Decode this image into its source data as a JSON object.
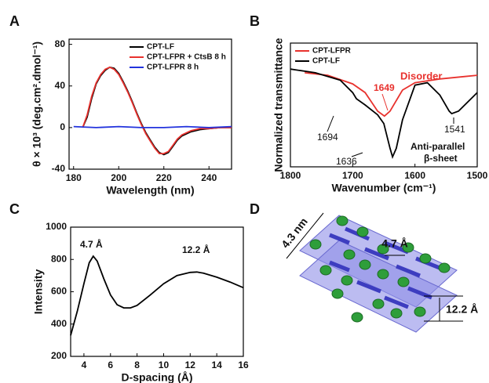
{
  "panels": [
    "A",
    "B",
    "C",
    "D"
  ],
  "chart_data": [
    {
      "type": "line",
      "xlabel": "Wavelength (nm)",
      "ylabel": "θ × 10³ (deg.cm².dmol⁻¹)",
      "xlim": [
        178,
        250
      ],
      "xticks": [
        180,
        200,
        220,
        240
      ],
      "ylim": [
        -40,
        85
      ],
      "yticks": [
        -40,
        0,
        40,
        80
      ],
      "legend": "upper right",
      "dashed_zero": true,
      "series": [
        {
          "name": "CPT-LF",
          "color": "#000000",
          "x": [
            184,
            186,
            188,
            190,
            192,
            194,
            196,
            198,
            200,
            202,
            204,
            206,
            208,
            210,
            212,
            214,
            216,
            218,
            220,
            222,
            224,
            226,
            228,
            232,
            236,
            240,
            245,
            250
          ],
          "values": [
            0,
            10,
            28,
            42,
            50,
            55,
            58,
            57,
            52,
            44,
            35,
            25,
            14,
            4,
            -5,
            -12,
            -19,
            -24,
            -26,
            -24,
            -18,
            -12,
            -8,
            -4,
            -2,
            -1,
            0,
            0
          ]
        },
        {
          "name": "CPT-LFPR + CtsB 8 h",
          "color": "#e8322e",
          "x": [
            184,
            186,
            188,
            190,
            192,
            194,
            196,
            198,
            200,
            202,
            204,
            206,
            208,
            210,
            212,
            214,
            216,
            218,
            220,
            222,
            224,
            226,
            228,
            232,
            236,
            240,
            245,
            250
          ],
          "values": [
            0,
            12,
            30,
            43,
            51,
            56,
            58,
            56,
            51,
            43,
            34,
            24,
            13,
            3,
            -6,
            -13,
            -20,
            -25,
            -25,
            -23,
            -17,
            -11,
            -7,
            -3,
            -1,
            -1,
            0,
            0
          ]
        },
        {
          "name": "CPT-LFPR 8 h",
          "color": "#2233dd",
          "x": [
            180,
            190,
            200,
            210,
            220,
            230,
            240,
            250
          ],
          "values": [
            1,
            0,
            1,
            0,
            0,
            1,
            0,
            1
          ]
        }
      ]
    },
    {
      "type": "line",
      "xlabel": "Wavenumber (cm⁻¹)",
      "ylabel": "Normalized transmittance",
      "xlim": [
        1800,
        1500
      ],
      "xticks": [
        1800,
        1700,
        1600,
        1500
      ],
      "ylim": [
        0,
        100
      ],
      "legend": "upper left",
      "annotations": [
        "1694",
        "1636",
        "1541",
        "1649",
        "Disorder",
        "Anti-parallel",
        "β-sheet"
      ],
      "series": [
        {
          "name": "CPT-LFPR",
          "color": "#e8322e",
          "x": [
            1777,
            1740,
            1700,
            1680,
            1660,
            1649,
            1640,
            1620,
            1600,
            1560,
            1520,
            1500
          ],
          "values": [
            76,
            74,
            67,
            60,
            45,
            41,
            45,
            62,
            68,
            71,
            73,
            74
          ]
        },
        {
          "name": "CPT-LF",
          "color": "#000000",
          "x": [
            1800,
            1760,
            1720,
            1700,
            1694,
            1680,
            1660,
            1650,
            1640,
            1636,
            1630,
            1620,
            1600,
            1580,
            1560,
            1545,
            1541,
            1530,
            1510,
            1500
          ],
          "values": [
            79,
            76,
            70,
            60,
            55,
            50,
            42,
            35,
            15,
            8,
            15,
            38,
            66,
            68,
            58,
            45,
            43,
            45,
            55,
            60
          ]
        }
      ]
    },
    {
      "type": "line",
      "xlabel": "D-spacing (Å)",
      "ylabel": "Intensity",
      "xlim": [
        3,
        16
      ],
      "xticks": [
        4,
        6,
        8,
        10,
        12,
        14,
        16
      ],
      "ylim": [
        200,
        1000
      ],
      "yticks": [
        200,
        400,
        600,
        800,
        1000
      ],
      "annotations": [
        "4.7 Å",
        "12.2 Å"
      ],
      "series": [
        {
          "color": "#000000",
          "x": [
            3,
            3.5,
            4,
            4.4,
            4.7,
            5,
            5.5,
            6,
            6.5,
            7,
            7.5,
            8,
            9,
            10,
            11,
            12,
            12.5,
            13,
            14,
            15,
            16
          ],
          "values": [
            330,
            480,
            650,
            780,
            820,
            790,
            680,
            580,
            520,
            500,
            500,
            515,
            580,
            650,
            700,
            720,
            722,
            715,
            690,
            660,
            625
          ]
        }
      ]
    }
  ],
  "diagram": {
    "labels": [
      "4.3 nm",
      "4.7 Å",
      "12.2 Å"
    ]
  }
}
